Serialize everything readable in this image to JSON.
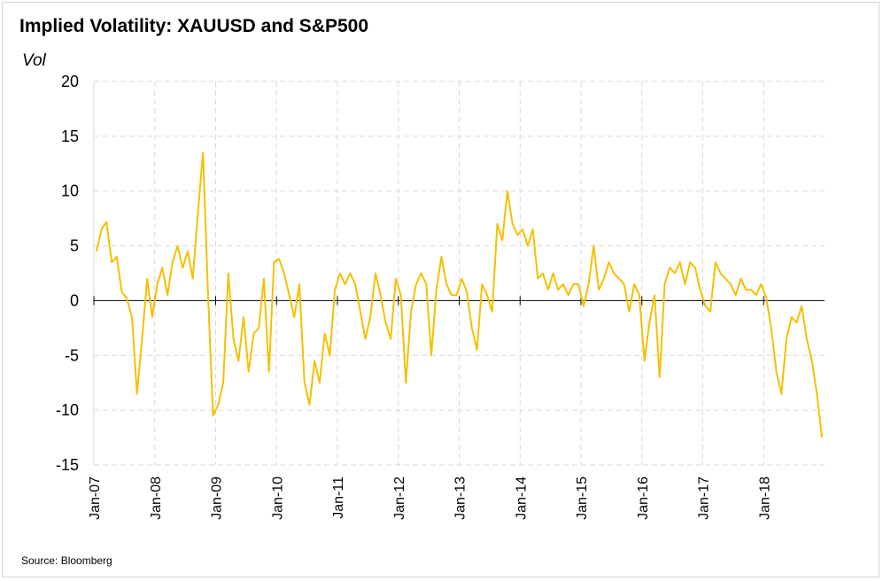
{
  "chart_data": {
    "type": "line",
    "title": "Implied Volatility: XAUUSD and S&P500",
    "ylabel": "Vol",
    "xlabel": "",
    "source": "Source: Bloomberg",
    "ylim": [
      -15,
      20
    ],
    "yticks": [
      20,
      15,
      10,
      5,
      0,
      -5,
      -10,
      -15
    ],
    "xlim": [
      "2007-01",
      "2018-12"
    ],
    "xticks": [
      "Jan-07",
      "Jan-08",
      "Jan-09",
      "Jan-10",
      "Jan-11",
      "Jan-12",
      "Jan-13",
      "Jan-14",
      "Jan-15",
      "Jan-16",
      "Jan-17",
      "Jan-18"
    ],
    "grid": true,
    "legend": "none",
    "line_color": "#F5C000",
    "series": [
      {
        "name": "",
        "x": [
          "2007-01",
          "2007-02",
          "2007-03",
          "2007-04",
          "2007-05",
          "2007-06",
          "2007-07",
          "2007-08",
          "2007-09",
          "2007-10",
          "2007-11",
          "2007-12",
          "2008-01",
          "2008-02",
          "2008-03",
          "2008-04",
          "2008-05",
          "2008-06",
          "2008-07",
          "2008-08",
          "2008-09",
          "2008-10",
          "2008-11",
          "2008-12",
          "2009-01",
          "2009-02",
          "2009-03",
          "2009-04",
          "2009-05",
          "2009-06",
          "2009-07",
          "2009-08",
          "2009-09",
          "2009-10",
          "2009-11",
          "2009-12",
          "2010-01",
          "2010-02",
          "2010-03",
          "2010-04",
          "2010-05",
          "2010-06",
          "2010-07",
          "2010-08",
          "2010-09",
          "2010-10",
          "2010-11",
          "2010-12",
          "2011-01",
          "2011-02",
          "2011-03",
          "2011-04",
          "2011-05",
          "2011-06",
          "2011-07",
          "2011-08",
          "2011-09",
          "2011-10",
          "2011-11",
          "2011-12",
          "2012-01",
          "2012-02",
          "2012-03",
          "2012-04",
          "2012-05",
          "2012-06",
          "2012-07",
          "2012-08",
          "2012-09",
          "2012-10",
          "2012-11",
          "2012-12",
          "2013-01",
          "2013-02",
          "2013-03",
          "2013-04",
          "2013-05",
          "2013-06",
          "2013-07",
          "2013-08",
          "2013-09",
          "2013-10",
          "2013-11",
          "2013-12",
          "2014-01",
          "2014-02",
          "2014-03",
          "2014-04",
          "2014-05",
          "2014-06",
          "2014-07",
          "2014-08",
          "2014-09",
          "2014-10",
          "2014-11",
          "2014-12",
          "2015-01",
          "2015-02",
          "2015-03",
          "2015-04",
          "2015-05",
          "2015-06",
          "2015-07",
          "2015-08",
          "2015-09",
          "2015-10",
          "2015-11",
          "2015-12",
          "2016-01",
          "2016-02",
          "2016-03",
          "2016-04",
          "2016-05",
          "2016-06",
          "2016-07",
          "2016-08",
          "2016-09",
          "2016-10",
          "2016-11",
          "2016-12",
          "2017-01",
          "2017-02",
          "2017-03",
          "2017-04",
          "2017-05",
          "2017-06",
          "2017-07",
          "2017-08",
          "2017-09",
          "2017-10",
          "2017-11",
          "2017-12",
          "2018-01",
          "2018-02",
          "2018-03",
          "2018-04",
          "2018-05",
          "2018-06",
          "2018-07",
          "2018-08",
          "2018-09",
          "2018-10",
          "2018-11",
          "2018-12"
        ],
        "values": [
          4.5,
          6.5,
          7.2,
          3.5,
          4.0,
          0.8,
          0.2,
          -1.5,
          -8.5,
          -3.5,
          2.0,
          -1.5,
          1.5,
          3.0,
          0.5,
          3.5,
          5.0,
          3.0,
          4.5,
          2.0,
          8.0,
          13.5,
          0.5,
          -10.5,
          -9.5,
          -7.5,
          2.5,
          -3.5,
          -5.5,
          -1.5,
          -6.5,
          -3.0,
          -2.5,
          2.0,
          -6.5,
          3.5,
          3.8,
          2.5,
          0.5,
          -1.5,
          1.5,
          -7.5,
          -9.5,
          -5.5,
          -7.5,
          -3.0,
          -5.0,
          1.0,
          2.5,
          1.5,
          2.5,
          1.5,
          -1.0,
          -3.5,
          -1.5,
          2.5,
          0.5,
          -2.0,
          -3.5,
          2.0,
          0.5,
          -7.5,
          -1.0,
          1.5,
          2.5,
          1.5,
          -5.0,
          1.0,
          4.0,
          1.5,
          0.5,
          0.5,
          2.0,
          0.8,
          -2.5,
          -4.5,
          1.5,
          0.5,
          -1.0,
          7.0,
          5.5,
          10.0,
          7.0,
          6.0,
          6.5,
          5.0,
          6.5,
          2.0,
          2.5,
          1.0,
          2.5,
          1.0,
          1.5,
          0.5,
          1.5,
          1.5,
          -0.5,
          1.5,
          5.0,
          1.0,
          2.0,
          3.5,
          2.5,
          2.0,
          1.5,
          -1.0,
          1.5,
          0.5,
          -5.5,
          -2.0,
          0.5,
          -7.0,
          1.5,
          3.0,
          2.5,
          3.5,
          1.5,
          3.5,
          3.0,
          1.0,
          -0.5,
          -1.0,
          3.5,
          2.5,
          2.0,
          1.5,
          0.5,
          2.0,
          1.0,
          1.0,
          0.5,
          1.5,
          0.3,
          -2.5,
          -6.5,
          -8.5,
          -3.5,
          -1.5,
          -2.0,
          -0.5,
          -3.5,
          -5.5,
          -8.5,
          -12.5
        ]
      }
    ]
  }
}
